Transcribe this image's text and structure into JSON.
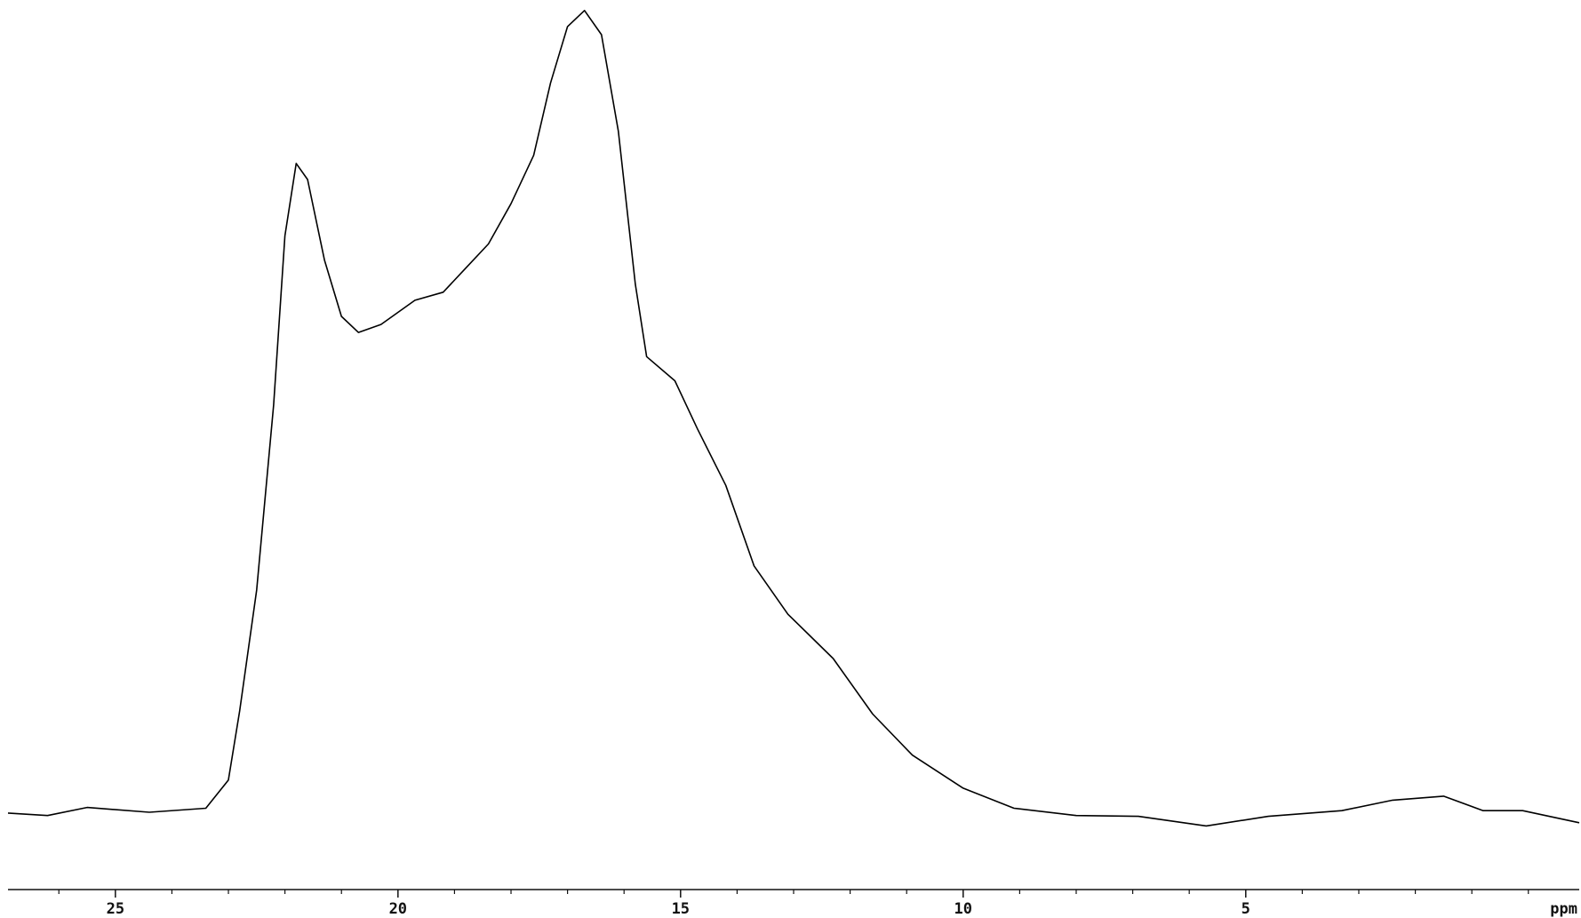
{
  "chart_data": {
    "type": "line",
    "x_label": "ppm",
    "x": [
      26.9,
      26.2,
      25.5,
      24.4,
      23.4,
      23.0,
      22.8,
      22.5,
      22.2,
      22.0,
      21.8,
      21.6,
      21.3,
      21.0,
      20.7,
      20.3,
      19.7,
      19.2,
      18.8,
      18.4,
      18.0,
      17.6,
      17.3,
      17.0,
      16.7,
      16.4,
      16.1,
      15.8,
      15.6,
      15.1,
      14.7,
      14.2,
      13.7,
      13.1,
      12.3,
      11.6,
      10.9,
      10.0,
      9.1,
      8.0,
      6.9,
      5.7,
      4.6,
      3.3,
      2.4,
      1.5,
      0.8,
      0.1,
      -0.9
    ],
    "series": [
      {
        "color": "#000000",
        "values": [
          0.3,
          0,
          1,
          0.4,
          0.9,
          4.4,
          13,
          28,
          51,
          72,
          81,
          79,
          69,
          62,
          60,
          61,
          64,
          65,
          68,
          71,
          76,
          82,
          91,
          98,
          100,
          97,
          85,
          66,
          57,
          54,
          48,
          41,
          31,
          25,
          19.5,
          12.6,
          7.5,
          3.4,
          0.9,
          0,
          -0.1,
          -1.3,
          -0.1,
          0.6,
          1.9,
          2.4,
          0.6,
          0.6,
          -0.9
        ]
      }
    ],
    "xlim": [
      26.9,
      -0.9
    ],
    "ylim": [
      -9.2,
      101.3
    ],
    "xticks": [
      25,
      20,
      15,
      10,
      5
    ],
    "xminorticks": [
      26,
      24,
      23,
      22,
      21,
      19,
      18,
      17,
      16,
      14,
      13,
      12,
      11,
      9,
      8,
      7,
      6,
      4,
      3,
      2,
      1,
      0
    ]
  }
}
